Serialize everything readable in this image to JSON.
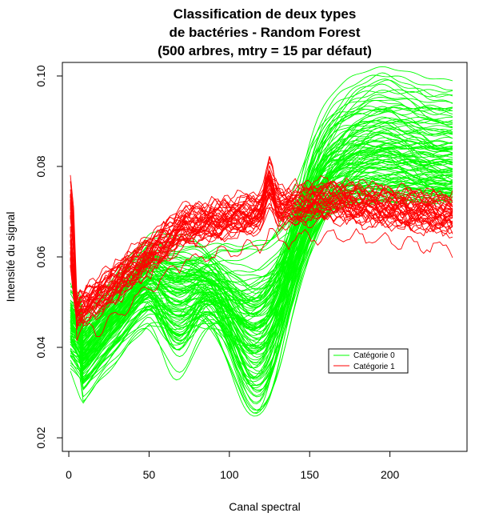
{
  "chart_data": {
    "type": "line",
    "title_lines": [
      "Classification de deux types",
      "de bactéries - Random Forest",
      "(500 arbres, mtry = 15 par défaut)"
    ],
    "xlabel": "Canal spectral",
    "ylabel": "Intensité du signal",
    "xlim": [
      -4,
      248
    ],
    "ylim": [
      0.017,
      0.103
    ],
    "x_ticks": [
      0,
      50,
      100,
      150,
      200
    ],
    "y_ticks": [
      0.02,
      0.04,
      0.06,
      0.08,
      0.1
    ],
    "y_tick_labels": [
      "0.02",
      "0.04",
      "0.06",
      "0.08",
      "0.10"
    ],
    "x_range": [
      1,
      240
    ],
    "grid": false,
    "legend_position": "lower-right",
    "series": [
      {
        "name": "Catégorie 0",
        "color": "#00ff00",
        "curve_count": 110,
        "representative": [
          {
            "x": 1,
            "y": 0.045
          },
          {
            "x": 10,
            "y": 0.038
          },
          {
            "x": 30,
            "y": 0.047
          },
          {
            "x": 50,
            "y": 0.056
          },
          {
            "x": 70,
            "y": 0.052
          },
          {
            "x": 90,
            "y": 0.055
          },
          {
            "x": 110,
            "y": 0.048
          },
          {
            "x": 130,
            "y": 0.047
          },
          {
            "x": 150,
            "y": 0.063
          },
          {
            "x": 170,
            "y": 0.078
          },
          {
            "x": 190,
            "y": 0.085
          },
          {
            "x": 210,
            "y": 0.082
          },
          {
            "x": 240,
            "y": 0.076
          }
        ]
      },
      {
        "name": "Catégorie 1",
        "color": "#ff0000",
        "curve_count": 40,
        "representative": [
          {
            "x": 1,
            "y": 0.063
          },
          {
            "x": 12,
            "y": 0.05
          },
          {
            "x": 30,
            "y": 0.058
          },
          {
            "x": 50,
            "y": 0.063
          },
          {
            "x": 75,
            "y": 0.066
          },
          {
            "x": 100,
            "y": 0.068
          },
          {
            "x": 125,
            "y": 0.076
          },
          {
            "x": 130,
            "y": 0.069
          },
          {
            "x": 150,
            "y": 0.07
          },
          {
            "x": 175,
            "y": 0.073
          },
          {
            "x": 200,
            "y": 0.071
          },
          {
            "x": 220,
            "y": 0.069
          },
          {
            "x": 240,
            "y": 0.067
          }
        ]
      }
    ]
  }
}
